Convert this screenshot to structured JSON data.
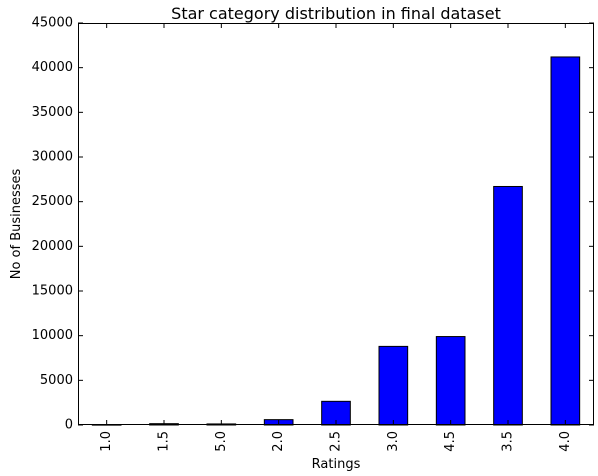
{
  "chart_data": {
    "type": "bar",
    "title": "Star category distribution in final dataset",
    "xlabel": "Ratings",
    "ylabel": "No of Businesses",
    "categories": [
      "1.0",
      "1.5",
      "5.0",
      "2.0",
      "2.5",
      "3.0",
      "4.5",
      "3.5",
      "4.0"
    ],
    "values": [
      40,
      150,
      120,
      600,
      2650,
      8800,
      9900,
      26700,
      41200
    ],
    "ylim": [
      0,
      45000
    ],
    "yticks": [
      0,
      5000,
      10000,
      15000,
      20000,
      25000,
      30000,
      35000,
      40000,
      45000
    ],
    "ytick_labels": [
      "0",
      "5000",
      "10000",
      "15000",
      "20000",
      "25000",
      "30000",
      "35000",
      "40000",
      "45000"
    ],
    "grid": false,
    "bar_color": "#0000ff",
    "edge_color": "#000000"
  }
}
